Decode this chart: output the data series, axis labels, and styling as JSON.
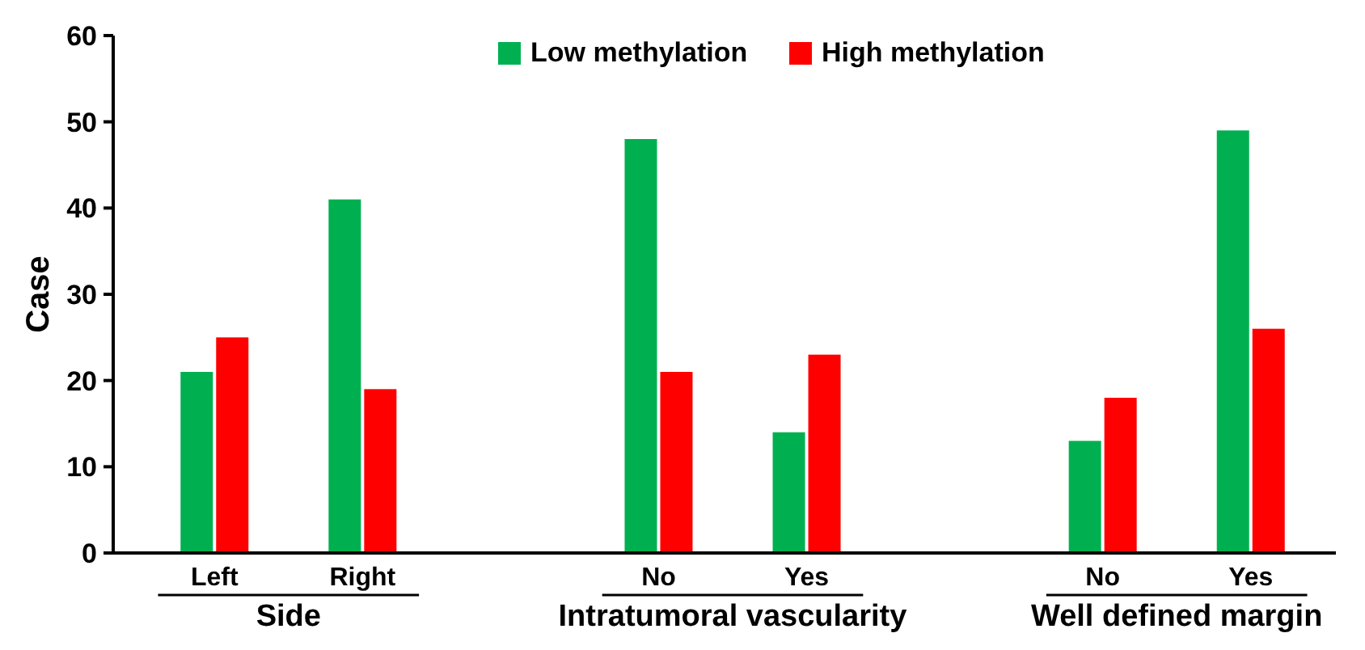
{
  "chart_data": {
    "type": "bar",
    "ylabel": "Case",
    "categories": [
      "Left",
      "Right",
      null,
      "No",
      "Yes",
      null,
      "No",
      "Yes"
    ],
    "series": [
      {
        "name": "Low methylation",
        "color": "#00b050",
        "values": [
          21,
          41,
          null,
          48,
          14,
          null,
          13,
          49
        ]
      },
      {
        "name": "High methylation",
        "color": "#ff0000",
        "values": [
          25,
          19,
          null,
          21,
          23,
          null,
          18,
          26
        ]
      }
    ],
    "ylim": [
      0,
      60
    ],
    "yticks": [
      0,
      10,
      20,
      30,
      40,
      50,
      60
    ],
    "legend": "top",
    "grid": false,
    "annotations": [
      "Side",
      "Intratumoral vascularity",
      "Well defined margin"
    ]
  }
}
